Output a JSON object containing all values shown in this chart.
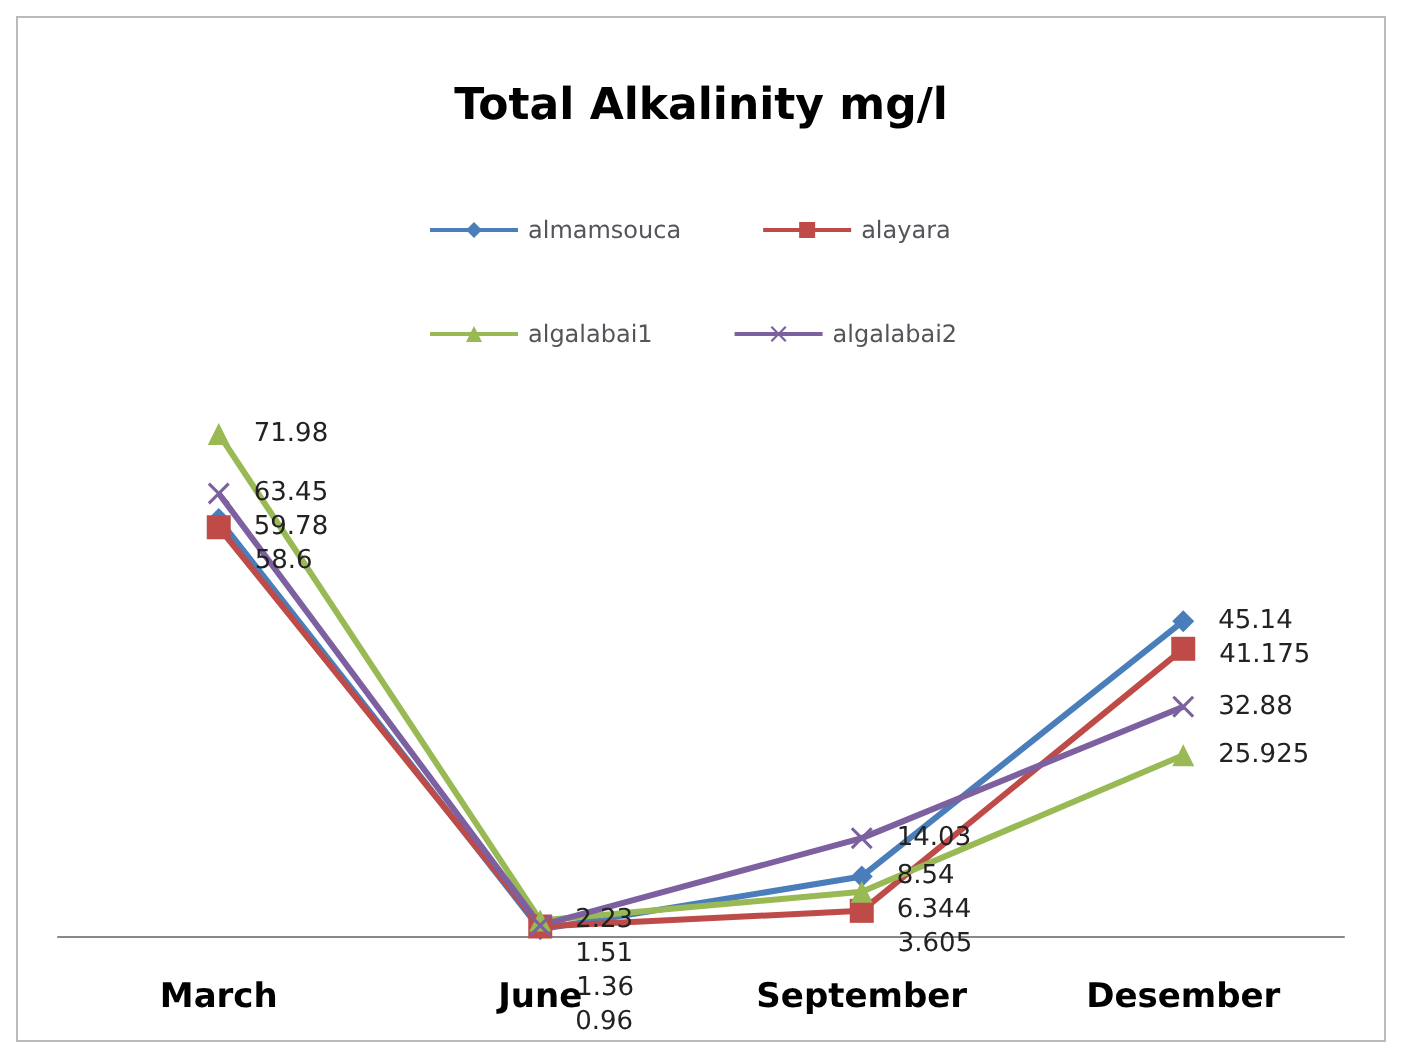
{
  "chart_data": {
    "type": "line",
    "title": "Total Alkalinity mg/l",
    "categories": [
      "March",
      "June",
      "September",
      "Desember"
    ],
    "series": [
      {
        "name": "almamsouca",
        "color": "#4a7ebb",
        "marker": "diamond",
        "values": [
          59.78,
          0.96,
          8.54,
          45.14
        ]
      },
      {
        "name": "alayara",
        "color": "#be4b48",
        "marker": "square",
        "values": [
          58.6,
          1.36,
          3.605,
          41.175
        ]
      },
      {
        "name": "algalabai1",
        "color": "#98b954",
        "marker": "triangle",
        "values": [
          71.98,
          2.23,
          6.344,
          25.925
        ]
      },
      {
        "name": "algalabai2",
        "color": "#7d60a0",
        "marker": "cross",
        "values": [
          63.45,
          1.51,
          14.03,
          32.88
        ]
      }
    ],
    "data_labels": true,
    "legend": "top",
    "grid": false,
    "tick_labels": "x"
  }
}
